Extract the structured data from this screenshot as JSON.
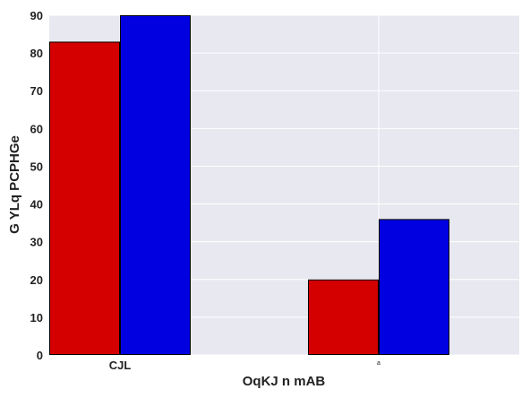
{
  "chart_data": {
    "type": "bar",
    "title": "",
    "xlabel": "OqKJ n mAB",
    "ylabel": "G YLq PCPHGe",
    "categories": [
      "CJL",
      "a"
    ],
    "series": [
      {
        "values": [
          83,
          20
        ],
        "color": "#d40000"
      },
      {
        "values": [
          90,
          36
        ],
        "color": "#0000e0"
      }
    ],
    "ylim": [
      0,
      90
    ],
    "yticks": [
      0,
      10,
      20,
      30,
      40,
      50,
      60,
      70,
      80,
      90
    ],
    "grid": true,
    "legend": "none",
    "background_color": "#e8e8f0",
    "gridline_color": "#ffffff"
  }
}
